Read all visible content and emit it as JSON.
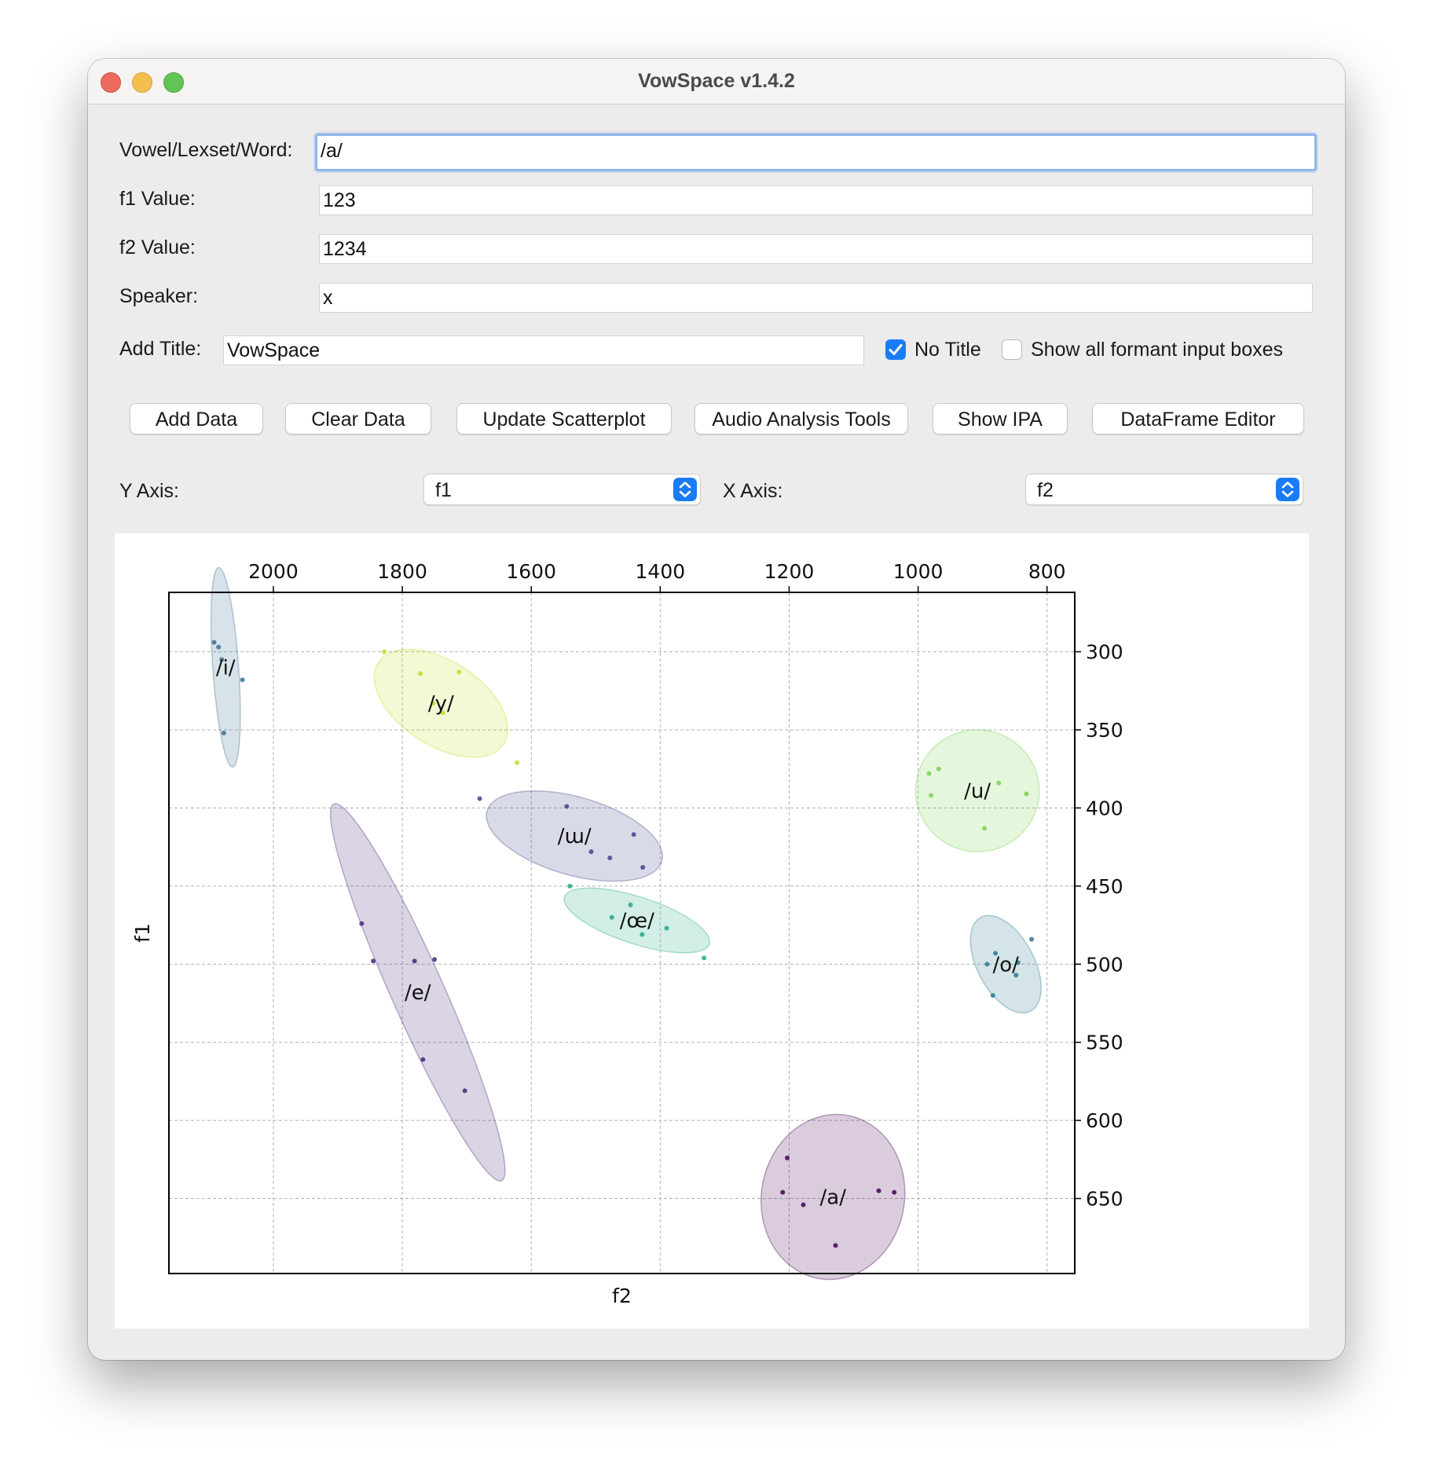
{
  "window": {
    "title": "VowSpace v1.4.2"
  },
  "form": {
    "vowel_label": "Vowel/Lexset/Word:",
    "vowel_value": "/a/",
    "f1_label": "f1 Value:",
    "f1_value": "123",
    "f2_label": "f2 Value:",
    "f2_value": "1234",
    "speaker_label": "Speaker:",
    "speaker_value": "x",
    "title_label": "Add Title:",
    "title_value": "VowSpace",
    "no_title_label": "No Title",
    "no_title_checked": true,
    "show_all_label": "Show all formant input boxes",
    "show_all_checked": false
  },
  "buttons": {
    "add_data": "Add Data",
    "clear_data": "Clear Data",
    "update_scatterplot": "Update Scatterplot",
    "audio_tools": "Audio Analysis Tools",
    "show_ipa": "Show IPA",
    "dataframe_editor": "DataFrame Editor"
  },
  "axes_select": {
    "y_label": "Y Axis:",
    "y_value": "f1",
    "x_label": "X Axis:",
    "x_value": "f2"
  },
  "colors": {
    "accent": "#1a7cf5",
    "i": "#3b6e8f",
    "y": "#bddf26",
    "u": "#7ad151",
    "w": "#414487",
    "oe": "#22a884",
    "o": "#2a788e",
    "e": "#482878",
    "a": "#440154"
  },
  "chart_data": {
    "type": "scatter",
    "xlabel": "f2",
    "ylabel": "f1",
    "x_ticks": [
      2000,
      1800,
      1600,
      1400,
      1200,
      1000,
      800
    ],
    "y_ticks": [
      300,
      350,
      400,
      450,
      500,
      550,
      600,
      650
    ],
    "xlim": [
      2162,
      757
    ],
    "ylim": [
      262,
      698
    ],
    "x_inverted": true,
    "y_inverted": true,
    "x_axis_position": "top",
    "y_axis_position": "right",
    "grid": true,
    "series": [
      {
        "name": "/i/",
        "color_key": "i",
        "points": [
          [
            2092,
            294
          ],
          [
            2085,
            297
          ],
          [
            2080,
            305
          ],
          [
            2048,
            318
          ],
          [
            2077,
            352
          ]
        ],
        "ellipse": {
          "cx": 2074,
          "cy": 310,
          "rx": 20,
          "ry": 64,
          "angle_deg": -4
        }
      },
      {
        "name": "/y/",
        "color_key": "y",
        "points": [
          [
            1828,
            300
          ],
          [
            1772,
            314
          ],
          [
            1712,
            313
          ],
          [
            1752,
            333
          ],
          [
            1737,
            339
          ],
          [
            1622,
            371
          ]
        ],
        "ellipse": {
          "cx": 1740,
          "cy": 333,
          "rx": 116,
          "ry": 27,
          "angle_deg": 33
        }
      },
      {
        "name": "/u/",
        "color_key": "u",
        "points": [
          [
            983,
            378
          ],
          [
            968,
            375
          ],
          [
            980,
            392
          ],
          [
            875,
            384
          ],
          [
            832,
            391
          ],
          [
            897,
            413
          ]
        ],
        "ellipse": {
          "cx": 908,
          "cy": 389,
          "rx": 96,
          "ry": 39,
          "angle_deg": 8
        }
      },
      {
        "name": "/ɯ/",
        "color_key": "w",
        "points": [
          [
            1680,
            394
          ],
          [
            1545,
            399
          ],
          [
            1441,
            417
          ],
          [
            1507,
            428
          ],
          [
            1478,
            432
          ],
          [
            1427,
            438
          ]
        ],
        "ellipse": {
          "cx": 1533,
          "cy": 418,
          "rx": 141,
          "ry": 25,
          "angle_deg": 16
        }
      },
      {
        "name": "/œ/",
        "color_key": "oe",
        "points": [
          [
            1540,
            450
          ],
          [
            1446,
            462
          ],
          [
            1475,
            470
          ],
          [
            1390,
            477
          ],
          [
            1428,
            481
          ],
          [
            1332,
            496
          ]
        ],
        "ellipse": {
          "cx": 1436,
          "cy": 472,
          "rx": 118,
          "ry": 15,
          "angle_deg": 18
        }
      },
      {
        "name": "/o/",
        "color_key": "o",
        "points": [
          [
            824,
            484
          ],
          [
            880,
            493
          ],
          [
            845,
            499
          ],
          [
            893,
            500
          ],
          [
            848,
            507
          ],
          [
            884,
            520
          ]
        ],
        "ellipse": {
          "cx": 864,
          "cy": 500,
          "rx": 44,
          "ry": 34,
          "angle_deg": -28
        }
      },
      {
        "name": "/e/",
        "color_key": "e",
        "points": [
          [
            1863,
            474
          ],
          [
            1845,
            498
          ],
          [
            1781,
            498
          ],
          [
            1750,
            497
          ],
          [
            1768,
            561
          ],
          [
            1703,
            581
          ]
        ],
        "ellipse": {
          "cx": 1776,
          "cy": 518,
          "rx": 41,
          "ry": 132,
          "angle_deg": -24
        }
      },
      {
        "name": "/a/",
        "color_key": "a",
        "points": [
          [
            1203,
            624
          ],
          [
            1210,
            646
          ],
          [
            1178,
            654
          ],
          [
            1061,
            645
          ],
          [
            1037,
            646
          ],
          [
            1128,
            680
          ]
        ],
        "ellipse": {
          "cx": 1132,
          "cy": 649,
          "rx": 111,
          "ry": 53,
          "angle_deg": 10
        }
      }
    ]
  }
}
